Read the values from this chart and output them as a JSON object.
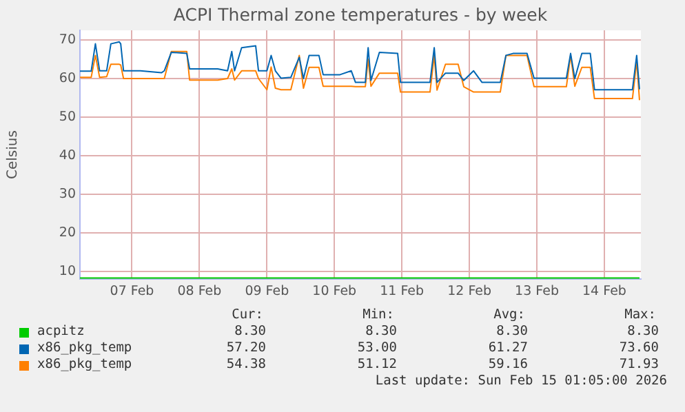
{
  "chart_data": {
    "type": "line",
    "title": "ACPI Thermal zone temperatures - by week",
    "ylabel": "Celsius",
    "x": [
      "2026-02-06T17:30",
      "2026-02-06T21:30",
      "2026-02-06T23:00",
      "2026-02-07T00:30",
      "2026-02-07T03:00",
      "2026-02-07T04:30",
      "2026-02-07T07:30",
      "2026-02-07T08:00",
      "2026-02-07T09:00",
      "2026-02-07T15:00",
      "2026-02-07T22:30",
      "2026-02-07T23:30",
      "2026-02-08T02:00",
      "2026-02-08T07:30",
      "2026-02-08T08:30",
      "2026-02-08T18:30",
      "2026-02-08T22:00",
      "2026-02-08T23:30",
      "2026-02-09T00:30",
      "2026-02-09T03:00",
      "2026-02-09T08:00",
      "2026-02-09T09:00",
      "2026-02-09T12:00",
      "2026-02-09T13:30",
      "2026-02-09T15:00",
      "2026-02-09T17:00",
      "2026-02-09T20:30",
      "2026-02-09T23:30",
      "2026-02-10T01:00",
      "2026-02-10T03:00",
      "2026-02-10T06:30",
      "2026-02-10T08:00",
      "2026-02-10T14:00",
      "2026-02-10T18:00",
      "2026-02-10T19:30",
      "2026-02-10T23:00",
      "2026-02-11T00:00",
      "2026-02-11T01:00",
      "2026-02-11T04:00",
      "2026-02-11T10:30",
      "2026-02-11T11:30",
      "2026-02-11T22:00",
      "2026-02-11T23:30",
      "2026-02-12T00:30",
      "2026-02-12T03:30",
      "2026-02-12T08:00",
      "2026-02-12T10:00",
      "2026-02-12T13:30",
      "2026-02-12T16:30",
      "2026-02-12T23:00",
      "2026-02-13T01:00",
      "2026-02-13T03:30",
      "2026-02-13T08:30",
      "2026-02-13T11:00",
      "2026-02-13T22:30",
      "2026-02-14T00:00",
      "2026-02-14T01:30",
      "2026-02-14T04:00",
      "2026-02-14T07:00",
      "2026-02-14T08:30",
      "2026-02-14T22:00",
      "2026-02-14T23:30",
      "2026-02-15T00:30"
    ],
    "series": [
      {
        "name": "acpitz",
        "color": "#00cc00",
        "x": [
          "2026-02-06T17:30",
          "2026-02-15T00:30"
        ],
        "values": [
          8.3,
          8.3
        ]
      },
      {
        "name": "x86_pkg_temp",
        "color": "#0066b3",
        "values": [
          61.9,
          61.9,
          69,
          62,
          62,
          69,
          69.5,
          69,
          62,
          62,
          61.5,
          62,
          66.8,
          66.5,
          62.5,
          62.5,
          62,
          67,
          62,
          68,
          68.5,
          62,
          62,
          66,
          62,
          60.1,
          60.3,
          65.5,
          60,
          66,
          66,
          61,
          61,
          62,
          59,
          59,
          68,
          59.5,
          66.8,
          66.5,
          59,
          59,
          68,
          59,
          61.4,
          61.4,
          59.5,
          62,
          59,
          59,
          66,
          66.5,
          66.5,
          60.1,
          60.1,
          66.5,
          60,
          66.5,
          66.5,
          57.1,
          57.1,
          66,
          57.2
        ]
      },
      {
        "name": "x86_pkg_temp",
        "color": "#ff8000",
        "values": [
          60.3,
          60.3,
          66,
          60.3,
          60.5,
          63.7,
          63.7,
          63.5,
          60,
          60,
          60,
          60,
          67,
          67,
          59.6,
          59.6,
          60,
          62.5,
          59.6,
          62,
          62,
          60,
          57.1,
          63,
          57.5,
          57.1,
          57.1,
          66,
          57.5,
          62.9,
          62.9,
          58,
          58,
          58,
          57.9,
          57.9,
          65,
          58,
          61.4,
          61.4,
          56.5,
          56.5,
          66,
          57,
          63.7,
          63.7,
          57.9,
          56.5,
          56.5,
          56.5,
          66,
          66,
          66,
          57.9,
          57.9,
          66,
          58,
          62.9,
          62.9,
          54.8,
          54.8,
          64.5,
          54.4
        ]
      }
    ],
    "xlim": [
      "2026-02-06T17:30",
      "2026-02-15T01:00"
    ],
    "xticks": [
      {
        "value": "2026-02-07T12:00",
        "label": "07 Feb"
      },
      {
        "value": "2026-02-08T12:00",
        "label": "08 Feb"
      },
      {
        "value": "2026-02-09T12:00",
        "label": "09 Feb"
      },
      {
        "value": "2026-02-10T12:00",
        "label": "10 Feb"
      },
      {
        "value": "2026-02-11T12:00",
        "label": "11 Feb"
      },
      {
        "value": "2026-02-12T12:00",
        "label": "12 Feb"
      },
      {
        "value": "2026-02-13T12:00",
        "label": "13 Feb"
      },
      {
        "value": "2026-02-14T12:00",
        "label": "14 Feb"
      }
    ],
    "ylim": [
      8,
      72.5
    ],
    "yticks": [
      10,
      20,
      30,
      40,
      50,
      60,
      70
    ],
    "grid": true,
    "legend": "bottom",
    "annotations": [
      "Cur:",
      "Min:",
      "Avg:",
      "Max:",
      "8.30",
      "8.30",
      "8.30",
      "8.30",
      "57.20",
      "53.00",
      "61.27",
      "73.60",
      "54.38",
      "51.12",
      "59.16",
      "71.93",
      "Last update: Sun Feb 15 01:05:00 2026"
    ]
  }
}
